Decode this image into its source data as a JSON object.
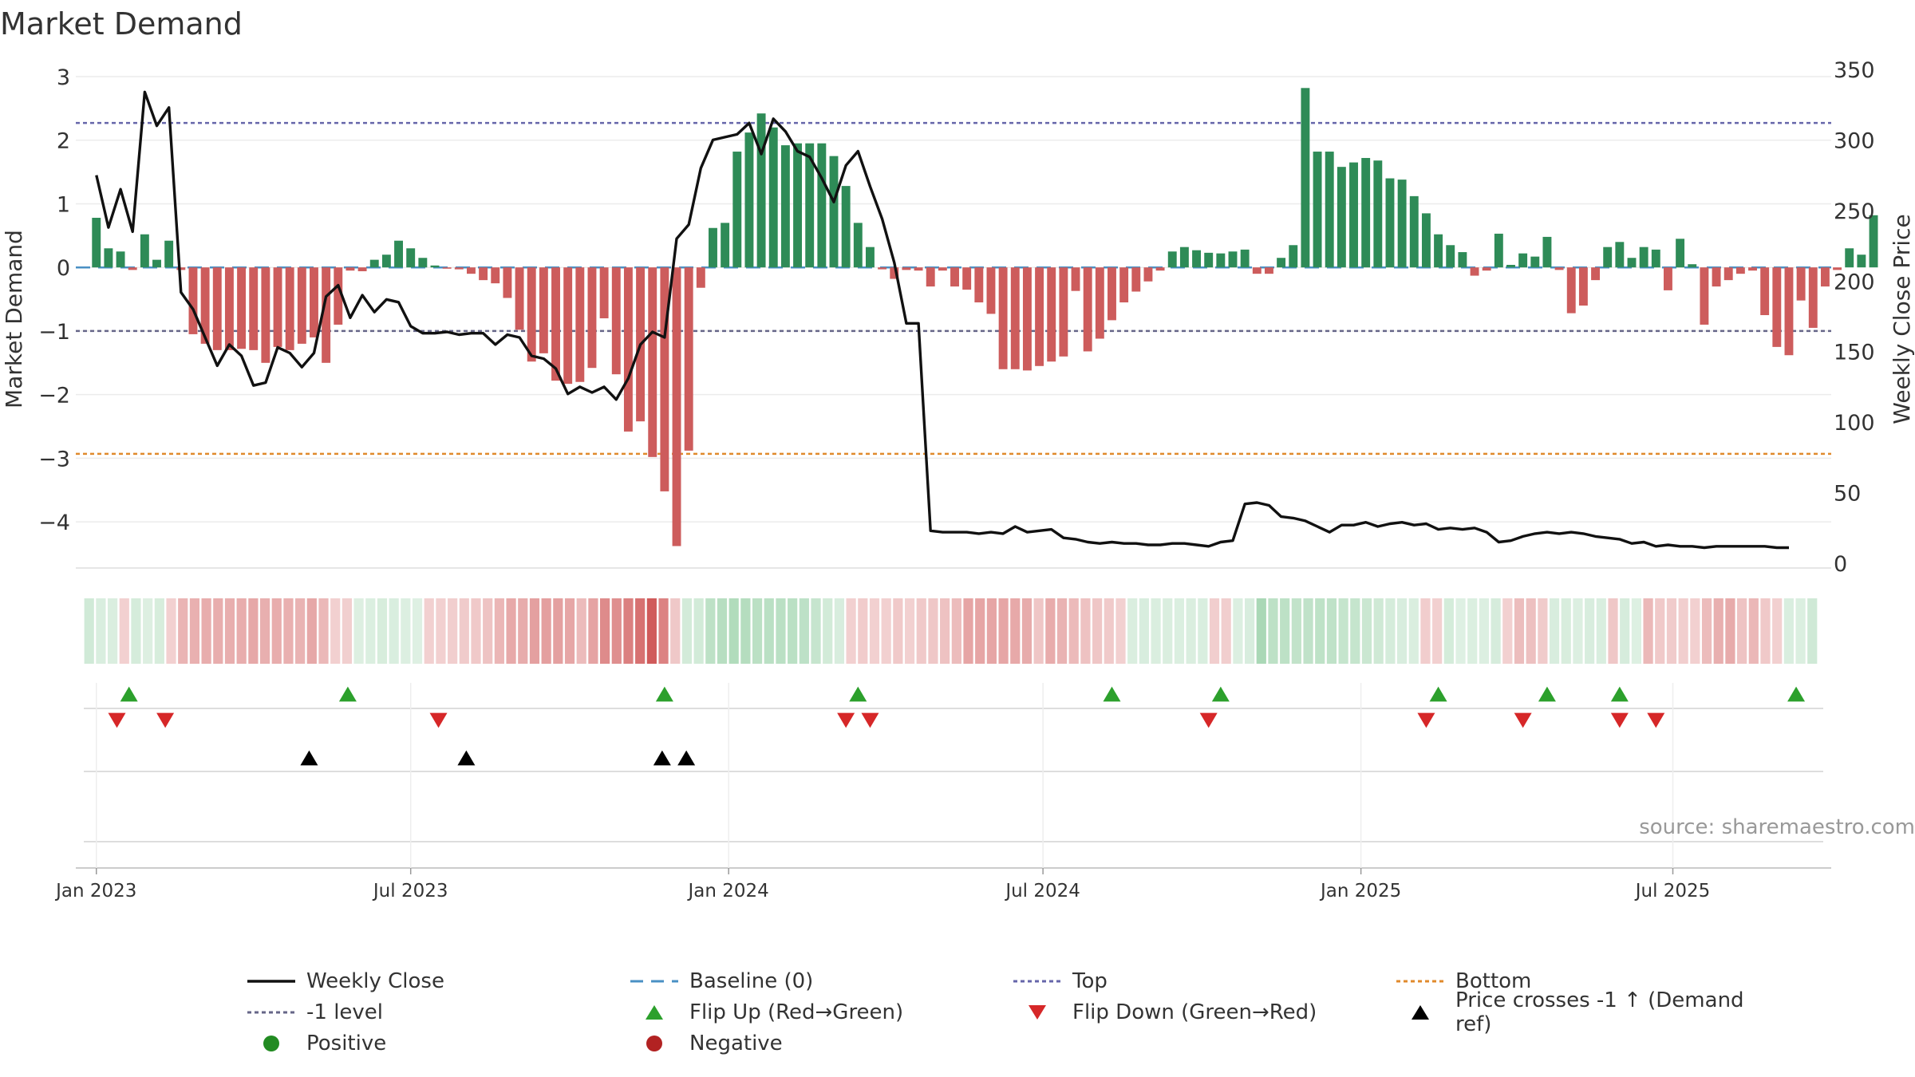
{
  "title": "Market Demand",
  "source": "source: sharemaestro.com",
  "colors": {
    "green": "#2e8b57",
    "red": "#cd5c5c",
    "line": "#111111",
    "baseline": "#4a90c4",
    "top": "#6666aa",
    "bottom": "#e08a2c",
    "flipUp": "#2ca02c",
    "flipDown": "#d62728",
    "cross": "#000000",
    "pos": "#228b22",
    "neg": "#b22222"
  },
  "legend": [
    {
      "key": "close",
      "label": "Weekly Close"
    },
    {
      "key": "baseline",
      "label": "Baseline (0)"
    },
    {
      "key": "top",
      "label": "Top"
    },
    {
      "key": "bottom",
      "label": "Bottom"
    },
    {
      "key": "minus1",
      "label": "-1 level"
    },
    {
      "key": "flipup",
      "label": "Flip Up (Red→Green)"
    },
    {
      "key": "flipdown",
      "label": "Flip Down (Green→Red)"
    },
    {
      "key": "cross",
      "label": "Price crosses -1 ↑ (Demand ref)"
    },
    {
      "key": "positive",
      "label": "Positive"
    },
    {
      "key": "negative",
      "label": "Negative"
    }
  ],
  "chart_data": {
    "type": "bar",
    "title": "Market Demand",
    "ylabel": "Market Demand",
    "ylabel_right": "Weekly Close Price",
    "ylim": [
      -4.7,
      3.2
    ],
    "ylim_right": [
      0,
      350
    ],
    "yticks": [
      3,
      2,
      1,
      0,
      -1,
      -2,
      -3,
      -4
    ],
    "yticks_right": [
      350,
      300,
      250,
      200,
      150,
      100,
      50,
      0
    ],
    "levels": {
      "baseline": 0,
      "top": 2.27,
      "minus1": -1.0,
      "bottom": -2.93
    },
    "x_range_weeks": [
      -1.7,
      143.5
    ],
    "x_ticks": [
      {
        "week": 0,
        "label": "Jan 2023"
      },
      {
        "week": 26,
        "label": "Jul 2023"
      },
      {
        "week": 52.3,
        "label": "Jan 2024"
      },
      {
        "week": 78.3,
        "label": "Jul 2024"
      },
      {
        "week": 104.6,
        "label": "Jan 2025"
      },
      {
        "week": 130.4,
        "label": "Jul 2025"
      }
    ],
    "demand": [
      0.78,
      0.3,
      0.25,
      -0.04,
      0.52,
      0.12,
      0.42,
      -0.04,
      -1.05,
      -1.2,
      -1.3,
      -1.3,
      -1.28,
      -1.3,
      -1.5,
      -1.25,
      -1.3,
      -1.2,
      -1.1,
      -1.5,
      -0.9,
      -0.05,
      -0.06,
      0.12,
      0.2,
      0.42,
      0.3,
      0.15,
      0.03,
      -0.02,
      -0.03,
      -0.1,
      -0.2,
      -0.25,
      -0.48,
      -0.98,
      -1.48,
      -1.35,
      -1.78,
      -1.83,
      -1.8,
      -1.58,
      -0.8,
      -1.68,
      -2.58,
      -2.42,
      -2.98,
      -3.52,
      -4.38,
      -2.88,
      -0.32,
      0.62,
      0.7,
      1.82,
      2.12,
      2.42,
      2.2,
      1.92,
      1.95,
      1.95,
      1.95,
      1.75,
      1.28,
      0.7,
      0.32,
      -0.03,
      -0.18,
      -0.04,
      -0.05,
      -0.3,
      -0.05,
      -0.3,
      -0.35,
      -0.55,
      -0.73,
      -1.6,
      -1.6,
      -1.62,
      -1.55,
      -1.48,
      -1.4,
      -0.37,
      -1.32,
      -1.12,
      -0.83,
      -0.55,
      -0.38,
      -0.22,
      -0.05,
      0.25,
      0.32,
      0.27,
      0.23,
      0.22,
      0.25,
      0.28,
      -0.1,
      -0.1,
      0.15,
      0.35,
      2.82,
      1.82,
      1.82,
      1.58,
      1.65,
      1.72,
      1.68,
      1.4,
      1.38,
      1.12,
      0.85,
      0.52,
      0.35,
      0.24,
      -0.13,
      -0.05,
      0.53,
      0.04,
      0.22,
      0.17,
      0.48,
      -0.04,
      -0.72,
      -0.6,
      -0.2,
      0.32,
      0.4,
      0.15,
      0.32,
      0.28,
      -0.36,
      0.45,
      0.05,
      -0.9,
      -0.3,
      -0.2,
      -0.1,
      -0.05,
      -0.75,
      -1.25,
      -1.38,
      -0.52,
      -0.95,
      -0.3,
      -0.04,
      0.3,
      0.2,
      0.82
    ],
    "close": [
      275,
      238,
      265,
      235,
      334,
      310,
      323,
      192,
      180,
      160,
      140,
      155,
      147,
      126,
      128,
      153,
      149,
      139,
      149,
      189,
      197,
      174,
      190,
      178,
      187,
      185,
      168,
      163,
      163,
      164,
      162,
      163,
      163,
      155,
      162,
      160,
      147,
      145,
      138,
      120,
      125,
      121,
      125,
      116,
      131,
      155,
      164,
      160,
      230,
      240,
      280,
      300,
      302,
      304,
      312,
      290,
      315,
      306,
      292,
      288,
      273,
      256,
      282,
      292,
      267,
      244,
      213,
      170,
      170,
      23,
      22,
      22,
      22,
      21,
      22,
      21,
      26,
      22,
      23,
      24,
      18,
      17,
      15,
      14,
      15,
      14,
      14,
      13,
      13,
      14,
      14,
      13,
      12,
      15,
      16,
      42,
      43,
      41,
      33,
      32,
      30,
      26,
      22,
      27,
      27,
      29,
      26,
      28,
      29,
      27,
      28,
      24,
      25,
      24,
      25,
      22,
      15,
      16,
      19,
      21,
      22,
      21,
      22,
      21,
      19,
      18,
      17,
      14,
      15,
      12,
      13,
      12,
      12,
      11,
      12,
      12,
      12,
      12,
      12,
      11,
      11
    ],
    "strip_week_range": [
      -1,
      142.5
    ],
    "flip_up_weeks": [
      2.7,
      20.8,
      47,
      63,
      84,
      93,
      111,
      120,
      126,
      140.6
    ],
    "flip_down_weeks": [
      1.7,
      5.7,
      28.3,
      62,
      64,
      92,
      110,
      118,
      126,
      129
    ],
    "cross_weeks": [
      17.6,
      30.6,
      46.8,
      48.8
    ]
  }
}
